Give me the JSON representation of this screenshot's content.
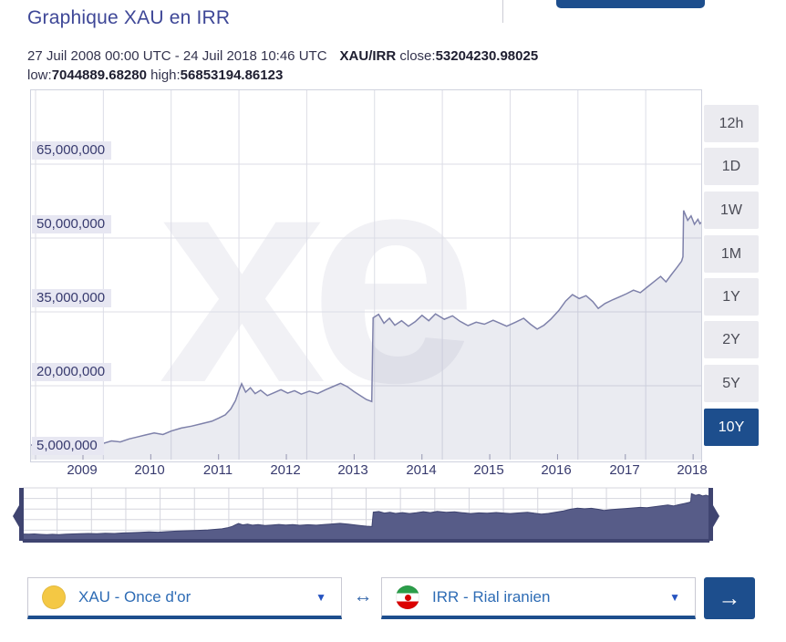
{
  "header": {
    "title": "Graphique XAU en IRR",
    "period": "27 Juil 2008 00:00 UTC - 24 Juil 2018 10:46 UTC",
    "pair": "XAU/IRR",
    "close_label": "close:",
    "close_value": "53204230.98025",
    "low_label": "low:",
    "low_value": "7044889.68280",
    "high_label": "high:",
    "high_value": "56853194.86123"
  },
  "range_buttons": {
    "options": [
      "12h",
      "1D",
      "1W",
      "1M",
      "1Y",
      "2Y",
      "5Y",
      "10Y"
    ],
    "selected": "10Y"
  },
  "watermark": "xe",
  "chart_data": {
    "type": "area",
    "title": "XAU/IRR exchange rate, 10 year range",
    "x_range": [
      "27 Juil 2008 00:00 UTC",
      "24 Juil 2018 10:46 UTC"
    ],
    "close": 53204230.98025,
    "low": 7044889.6828,
    "high": 56853194.86123,
    "ylim": [
      5000000,
      80000000
    ],
    "y_ticks": [
      "65,000,000",
      "50,000,000",
      "35,000,000",
      "20,000,000",
      "5,000,000"
    ],
    "y_tick_values": [
      65,
      50,
      35,
      20,
      5
    ],
    "x_ticks": [
      "2009",
      "2010",
      "2011",
      "2012",
      "2013",
      "2014",
      "2015",
      "2016",
      "2017",
      "2018"
    ],
    "x_tick_years": [
      2009,
      2010,
      2011,
      2012,
      2013,
      2014,
      2015,
      2016,
      2017,
      2018
    ],
    "unit_scale": 1000000,
    "grid": true,
    "navigator": true,
    "points": [
      [
        2008.23,
        8.0
      ],
      [
        2008.32,
        7.7
      ],
      [
        2008.4,
        8.1
      ],
      [
        2008.5,
        7.5
      ],
      [
        2008.58,
        7.2
      ],
      [
        2008.66,
        7.6
      ],
      [
        2008.75,
        7.3
      ],
      [
        2008.85,
        7.9
      ],
      [
        2008.95,
        8.1
      ],
      [
        2009.05,
        8.3
      ],
      [
        2009.18,
        8.6
      ],
      [
        2009.3,
        8.3
      ],
      [
        2009.42,
        8.8
      ],
      [
        2009.55,
        8.6
      ],
      [
        2009.68,
        9.2
      ],
      [
        2009.8,
        9.6
      ],
      [
        2009.92,
        10.0
      ],
      [
        2010.05,
        10.4
      ],
      [
        2010.18,
        10.1
      ],
      [
        2010.3,
        10.8
      ],
      [
        2010.45,
        11.4
      ],
      [
        2010.6,
        11.8
      ],
      [
        2010.75,
        12.3
      ],
      [
        2010.9,
        12.8
      ],
      [
        2011.0,
        13.4
      ],
      [
        2011.1,
        14.1
      ],
      [
        2011.18,
        15.3
      ],
      [
        2011.25,
        17.0
      ],
      [
        2011.3,
        19.0
      ],
      [
        2011.34,
        20.4
      ],
      [
        2011.4,
        18.7
      ],
      [
        2011.47,
        19.6
      ],
      [
        2011.54,
        18.4
      ],
      [
        2011.62,
        19.1
      ],
      [
        2011.72,
        18.0
      ],
      [
        2011.82,
        18.6
      ],
      [
        2011.92,
        19.2
      ],
      [
        2012.02,
        18.5
      ],
      [
        2012.12,
        19.0
      ],
      [
        2012.22,
        18.3
      ],
      [
        2012.34,
        18.9
      ],
      [
        2012.46,
        18.4
      ],
      [
        2012.58,
        19.2
      ],
      [
        2012.7,
        19.9
      ],
      [
        2012.8,
        20.5
      ],
      [
        2012.9,
        19.8
      ],
      [
        2013.0,
        18.8
      ],
      [
        2013.1,
        17.9
      ],
      [
        2013.18,
        17.2
      ],
      [
        2013.26,
        16.8
      ],
      [
        2013.28,
        33.8
      ],
      [
        2013.36,
        34.5
      ],
      [
        2013.44,
        32.7
      ],
      [
        2013.52,
        33.7
      ],
      [
        2013.6,
        32.3
      ],
      [
        2013.7,
        33.2
      ],
      [
        2013.8,
        32.1
      ],
      [
        2013.9,
        33.0
      ],
      [
        2014.0,
        34.3
      ],
      [
        2014.1,
        33.2
      ],
      [
        2014.2,
        34.6
      ],
      [
        2014.33,
        33.5
      ],
      [
        2014.45,
        34.2
      ],
      [
        2014.56,
        33.1
      ],
      [
        2014.68,
        32.2
      ],
      [
        2014.8,
        32.9
      ],
      [
        2014.92,
        32.5
      ],
      [
        2015.05,
        33.3
      ],
      [
        2015.15,
        32.7
      ],
      [
        2015.25,
        32.1
      ],
      [
        2015.38,
        32.9
      ],
      [
        2015.5,
        33.7
      ],
      [
        2015.6,
        32.5
      ],
      [
        2015.7,
        31.5
      ],
      [
        2015.8,
        32.3
      ],
      [
        2015.9,
        33.5
      ],
      [
        2016.02,
        35.3
      ],
      [
        2016.12,
        37.2
      ],
      [
        2016.22,
        38.5
      ],
      [
        2016.32,
        37.7
      ],
      [
        2016.42,
        38.3
      ],
      [
        2016.52,
        37.1
      ],
      [
        2016.6,
        35.7
      ],
      [
        2016.7,
        36.7
      ],
      [
        2016.82,
        37.5
      ],
      [
        2016.92,
        38.1
      ],
      [
        2017.02,
        38.7
      ],
      [
        2017.12,
        39.4
      ],
      [
        2017.22,
        38.9
      ],
      [
        2017.32,
        40.0
      ],
      [
        2017.42,
        41.1
      ],
      [
        2017.52,
        42.2
      ],
      [
        2017.6,
        41.1
      ],
      [
        2017.68,
        42.6
      ],
      [
        2017.76,
        44.0
      ],
      [
        2017.83,
        45.3
      ],
      [
        2017.85,
        46.2
      ],
      [
        2017.86,
        55.6
      ],
      [
        2017.92,
        53.6
      ],
      [
        2017.97,
        54.5
      ],
      [
        2018.02,
        52.8
      ],
      [
        2018.07,
        53.8
      ],
      [
        2018.1,
        52.9
      ],
      [
        2018.12,
        53.2
      ]
    ]
  },
  "converter": {
    "from_label": "XAU - Once d'or",
    "to_label": "IRR - Rial iranien",
    "swap_symbol": "↔",
    "caret_symbol": "▼",
    "submit_symbol": "→"
  },
  "colors": {
    "accent": "#1d4e8d",
    "title": "#3e4797",
    "line": "#7e81aa",
    "fill": "rgba(126,129,170,0.16)",
    "nav_fill": "#575c88",
    "nav_dark": "#3f4470",
    "grid": "#dcdde6",
    "label": "#373a6e",
    "link_blue": "#2e6cb5"
  }
}
